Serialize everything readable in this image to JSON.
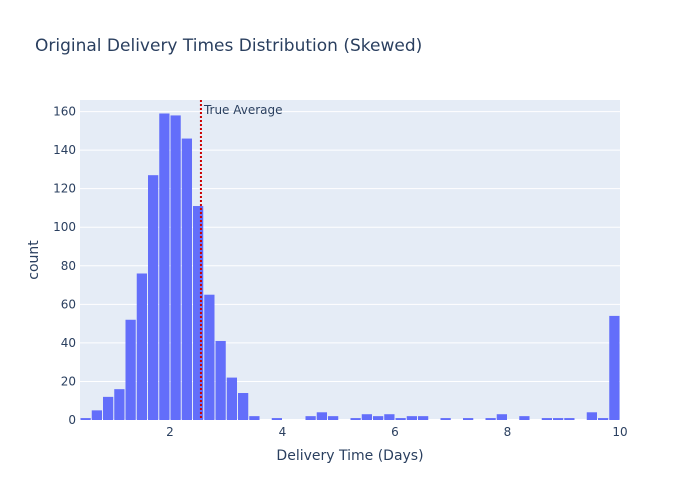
{
  "chart_data": {
    "type": "bar",
    "title": "Original Delivery Times Distribution (Skewed)",
    "xlabel": "Delivery Time (Days)",
    "ylabel": "count",
    "xlim": [
      0.4,
      10.0
    ],
    "ylim": [
      0,
      166
    ],
    "bin_width": 0.2,
    "x_ticks": [
      2,
      4,
      6,
      8,
      10
    ],
    "x_tick_labels": [
      "2",
      "4",
      "6",
      "8",
      "10"
    ],
    "y_ticks": [
      0,
      20,
      40,
      60,
      80,
      100,
      120,
      140,
      160
    ],
    "y_tick_labels": [
      "0",
      "20",
      "40",
      "60",
      "80",
      "100",
      "120",
      "140",
      "160"
    ],
    "bin_starts": [
      0.4,
      0.6,
      0.8,
      1.0,
      1.2,
      1.4,
      1.6,
      1.8,
      2.0,
      2.2,
      2.4,
      2.6,
      2.8,
      3.0,
      3.2,
      3.4,
      3.6,
      3.8,
      4.0,
      4.2,
      4.4,
      4.6,
      4.8,
      5.0,
      5.2,
      5.4,
      5.6,
      5.8,
      6.0,
      6.2,
      6.4,
      6.6,
      6.8,
      7.0,
      7.2,
      7.4,
      7.6,
      7.8,
      8.0,
      8.2,
      8.4,
      8.6,
      8.8,
      9.0,
      9.2,
      9.4,
      9.6,
      9.8
    ],
    "values": [
      1,
      5,
      12,
      16,
      52,
      76,
      127,
      159,
      158,
      146,
      111,
      65,
      41,
      22,
      14,
      2,
      0,
      1,
      0,
      0,
      2,
      4,
      2,
      0,
      1,
      3,
      2,
      3,
      1,
      2,
      2,
      0,
      1,
      0,
      1,
      0,
      1,
      3,
      0,
      2,
      0,
      1,
      1,
      1,
      0,
      4,
      1,
      54
    ],
    "bar_color": "#636efa",
    "plot_bg_color": "#e5ecf6",
    "grid_color": "#ffffff",
    "text_color": "#2a3f5f",
    "reference_line": {
      "x": 2.55,
      "label": "True Average",
      "color": "#cc0000",
      "style": "dotted"
    }
  }
}
